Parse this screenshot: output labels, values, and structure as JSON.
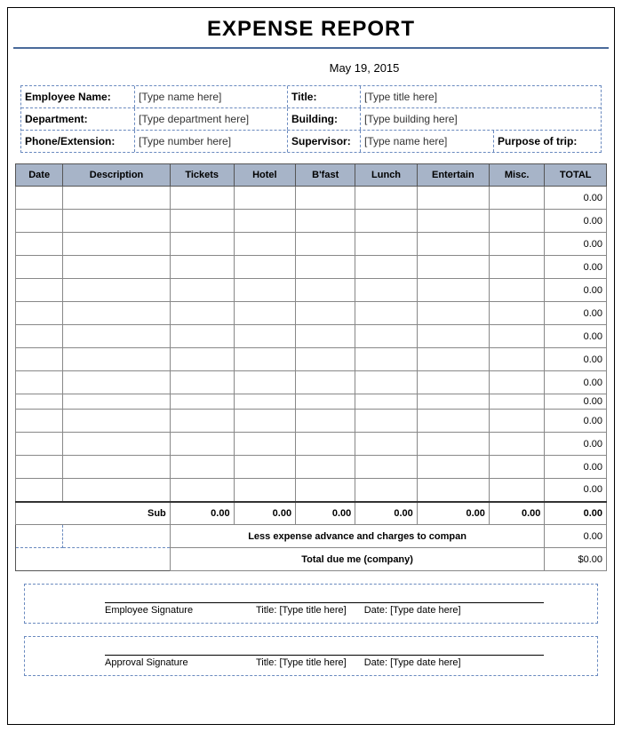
{
  "title": "EXPENSE REPORT",
  "date": "May 19, 2015",
  "info": {
    "employee_name_label": "Employee Name:",
    "employee_name_val": "[Type name here]",
    "title_label": "Title:",
    "title_val": "[Type title here]",
    "department_label": "Department:",
    "department_val": "[Type department here]",
    "building_label": "Building:",
    "building_val": "[Type building here]",
    "phone_label": "Phone/Extension:",
    "phone_val": "[Type number here]",
    "supervisor_label": "Supervisor:",
    "supervisor_val": "[Type name here]",
    "purpose_label": "Purpose of trip:"
  },
  "columns": [
    "Date",
    "Description",
    "Tickets",
    "Hotel",
    "B'fast",
    "Lunch",
    "Entertain",
    "Misc.",
    "TOTAL"
  ],
  "rows": [
    {
      "total": "0.00"
    },
    {
      "total": "0.00"
    },
    {
      "total": "0.00"
    },
    {
      "total": "0.00"
    },
    {
      "total": "0.00"
    },
    {
      "total": "0.00"
    },
    {
      "total": "0.00"
    },
    {
      "total": "0.00"
    },
    {
      "total": "0.00"
    },
    {
      "total": "0.00"
    },
    {
      "total": "0.00"
    },
    {
      "total": "0.00"
    },
    {
      "total": "0.00"
    },
    {
      "total": "0.00"
    }
  ],
  "subtotal": {
    "label": "Sub",
    "tickets": "0.00",
    "hotel": "0.00",
    "bfast": "0.00",
    "lunch": "0.00",
    "entertain": "0.00",
    "misc": "0.00",
    "total": "0.00"
  },
  "less_label": "Less expense advance and charges to compan",
  "less_val": "0.00",
  "due_label": "Total due me (company)",
  "due_val": "$0.00",
  "sig": {
    "emp_label": "Employee Signature",
    "app_label": "Approval Signature",
    "title_label": "Title:",
    "title_val": "[Type title here]",
    "date_label": "Date:",
    "date_val": "[Type date here]"
  },
  "colors": {
    "header_bg": "#a7b4c8",
    "rule": "#4a6a9a",
    "dash": "#6a8abf"
  }
}
